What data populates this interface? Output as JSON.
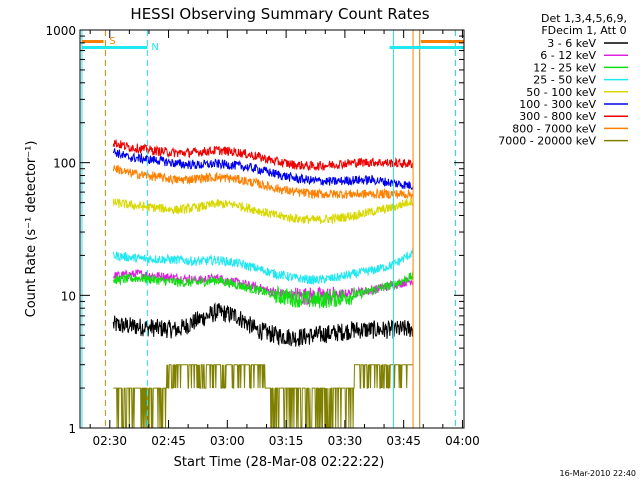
{
  "chart_data": {
    "type": "line",
    "title": "HESSI Observing Summary Count Rates",
    "xlabel": "Start Time (28-Mar-08 02:22:22)",
    "ylabel": "Count Rate (s⁻¹ detector⁻¹)",
    "y_scale": "log",
    "ylim": [
      1,
      1000
    ],
    "xlim_minutes_after_start": [
      0,
      98
    ],
    "x_ticks": [
      {
        "label": "02:30",
        "minutes": 7.6
      },
      {
        "label": "02:45",
        "minutes": 22.6
      },
      {
        "label": "03:00",
        "minutes": 37.6
      },
      {
        "label": "03:15",
        "minutes": 52.6
      },
      {
        "label": "03:30",
        "minutes": 67.6
      },
      {
        "label": "03:45",
        "minutes": 82.6
      },
      {
        "label": "04:00",
        "minutes": 97.6
      }
    ],
    "y_ticks": [
      "1",
      "10",
      "100",
      "1000"
    ],
    "legend_header": [
      "Det 1,3,4,5,6,9,",
      "FDecim 1, Att 0"
    ],
    "series": [
      {
        "name": "3 - 6 keV",
        "color": "#000000",
        "points": [
          [
            8.5,
            6
          ],
          [
            15,
            5.8
          ],
          [
            25,
            5.5
          ],
          [
            30,
            6.5
          ],
          [
            35,
            7.5
          ],
          [
            40,
            7
          ],
          [
            45,
            5.5
          ],
          [
            50,
            5
          ],
          [
            55,
            4.8
          ],
          [
            60,
            5
          ],
          [
            65,
            5.2
          ],
          [
            70,
            5.5
          ],
          [
            75,
            5.5
          ],
          [
            80,
            5.5
          ],
          [
            85,
            5.6
          ]
        ]
      },
      {
        "name": "6 - 12 keV",
        "color": "#e020e0",
        "points": [
          [
            8.5,
            14
          ],
          [
            15,
            14.5
          ],
          [
            25,
            13.5
          ],
          [
            30,
            13
          ],
          [
            35,
            13.5
          ],
          [
            40,
            12.5
          ],
          [
            45,
            11.5
          ],
          [
            50,
            10.5
          ],
          [
            55,
            10
          ],
          [
            60,
            9.8
          ],
          [
            65,
            10
          ],
          [
            70,
            10.5
          ],
          [
            75,
            11
          ],
          [
            80,
            12
          ],
          [
            85,
            13
          ]
        ]
      },
      {
        "name": "12 - 25 keV",
        "color": "#10e010",
        "points": [
          [
            8.5,
            13
          ],
          [
            15,
            13.5
          ],
          [
            25,
            12.5
          ],
          [
            30,
            12.5
          ],
          [
            35,
            13
          ],
          [
            40,
            12
          ],
          [
            45,
            11
          ],
          [
            50,
            10
          ],
          [
            55,
            9.5
          ],
          [
            60,
            9.2
          ],
          [
            65,
            9.5
          ],
          [
            70,
            10
          ],
          [
            75,
            11
          ],
          [
            80,
            12
          ],
          [
            85,
            14
          ]
        ]
      },
      {
        "name": "25 - 50 keV",
        "color": "#20e8f0",
        "points": [
          [
            8.5,
            20
          ],
          [
            15,
            19
          ],
          [
            25,
            18.5
          ],
          [
            30,
            18
          ],
          [
            35,
            18.5
          ],
          [
            40,
            17.5
          ],
          [
            45,
            16
          ],
          [
            50,
            14.5
          ],
          [
            55,
            13.5
          ],
          [
            60,
            13
          ],
          [
            65,
            13.5
          ],
          [
            70,
            14.5
          ],
          [
            75,
            15.5
          ],
          [
            80,
            17
          ],
          [
            85,
            21
          ]
        ]
      },
      {
        "name": "50 - 100 keV",
        "color": "#d8d800",
        "points": [
          [
            8.5,
            50
          ],
          [
            15,
            47
          ],
          [
            25,
            44
          ],
          [
            30,
            46
          ],
          [
            35,
            49
          ],
          [
            40,
            48
          ],
          [
            45,
            44
          ],
          [
            50,
            40
          ],
          [
            55,
            38
          ],
          [
            60,
            37
          ],
          [
            65,
            38
          ],
          [
            70,
            40
          ],
          [
            75,
            43
          ],
          [
            80,
            46
          ],
          [
            85,
            52
          ]
        ]
      },
      {
        "name": "100 - 300 keV",
        "color": "#0000ee",
        "points": [
          [
            8.5,
            122
          ],
          [
            12,
            110
          ],
          [
            20,
            104
          ],
          [
            25,
            98
          ],
          [
            30,
            96
          ],
          [
            35,
            98
          ],
          [
            40,
            95
          ],
          [
            45,
            90
          ],
          [
            50,
            82
          ],
          [
            55,
            76
          ],
          [
            60,
            73
          ],
          [
            65,
            72
          ],
          [
            70,
            74
          ],
          [
            75,
            74
          ],
          [
            80,
            70
          ],
          [
            85,
            67
          ]
        ]
      },
      {
        "name": "300 - 800 keV",
        "color": "#ee0000",
        "points": [
          [
            8.5,
            142
          ],
          [
            12,
            132
          ],
          [
            20,
            122
          ],
          [
            25,
            118
          ],
          [
            30,
            120
          ],
          [
            35,
            124
          ],
          [
            40,
            120
          ],
          [
            45,
            112
          ],
          [
            50,
            102
          ],
          [
            55,
            96
          ],
          [
            60,
            94
          ],
          [
            65,
            97
          ],
          [
            70,
            100
          ],
          [
            75,
            101
          ],
          [
            80,
            99
          ],
          [
            85,
            98
          ]
        ]
      },
      {
        "name": "800 - 7000 keV",
        "color": "#ff8000",
        "points": [
          [
            8.5,
            92
          ],
          [
            12,
            84
          ],
          [
            20,
            78
          ],
          [
            25,
            74
          ],
          [
            30,
            76
          ],
          [
            35,
            78
          ],
          [
            40,
            75
          ],
          [
            45,
            70
          ],
          [
            50,
            64
          ],
          [
            55,
            60
          ],
          [
            60,
            58
          ],
          [
            65,
            58
          ],
          [
            70,
            58
          ],
          [
            75,
            58
          ],
          [
            80,
            58
          ],
          [
            85,
            58
          ]
        ]
      },
      {
        "name": "7000 - 20000 keV",
        "color": "#808000",
        "points": [
          [
            8.5,
            2
          ],
          [
            14,
            2
          ],
          [
            20,
            2
          ],
          [
            22,
            2.5
          ],
          [
            26,
            2.5
          ],
          [
            30,
            3
          ],
          [
            38,
            3
          ],
          [
            40,
            3.5
          ],
          [
            45,
            3
          ],
          [
            50,
            2
          ],
          [
            60,
            2
          ],
          [
            65,
            2
          ],
          [
            70,
            2.5
          ],
          [
            75,
            3
          ],
          [
            80,
            3.5
          ],
          [
            85,
            3
          ]
        ]
      }
    ],
    "markers": [
      {
        "label": "S",
        "color": "#ff8000"
      },
      {
        "label": "N",
        "color": "#20e8f0"
      }
    ],
    "footer": "16-Mar-2010 22:40"
  }
}
